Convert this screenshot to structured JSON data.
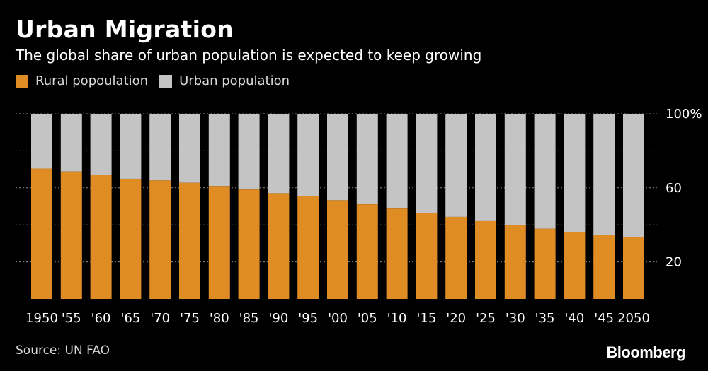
{
  "header": {
    "title": "Urban Migration",
    "subtitle": "The global share of urban population is expected to keep growing"
  },
  "footer": {
    "source": "Source: UN FAO",
    "brand": "Bloomberg"
  },
  "colors": {
    "rural": "#e08c24",
    "urban": "#c4c4c4",
    "grid": "#8a8a8a",
    "background": "#000000"
  },
  "chart_data": {
    "type": "bar",
    "stacked": true,
    "categories": [
      "1950",
      "'55",
      "'60",
      "'65",
      "'70",
      "'75",
      "'80",
      "'85",
      "'90",
      "'95",
      "'00",
      "'05",
      "'10",
      "'15",
      "'20",
      "'25",
      "'30",
      "'35",
      "'40",
      "'45",
      "2050"
    ],
    "series": [
      {
        "name": "Rural popoulation",
        "values": [
          70.4,
          68.8,
          66.9,
          64.9,
          64.0,
          62.7,
          61.0,
          59.1,
          57.1,
          55.4,
          53.3,
          51.1,
          48.8,
          46.3,
          44.3,
          42.0,
          39.9,
          37.9,
          36.2,
          34.7,
          33.2
        ]
      },
      {
        "name": "Urban population",
        "values": [
          29.6,
          31.2,
          33.1,
          35.1,
          36.0,
          37.3,
          39.0,
          40.9,
          42.9,
          44.6,
          46.7,
          48.9,
          51.2,
          53.7,
          55.7,
          58.0,
          60.1,
          62.1,
          63.8,
          65.3,
          66.8
        ]
      }
    ],
    "ylim": [
      0,
      100
    ],
    "yticks": [
      {
        "value": 20,
        "label": "20"
      },
      {
        "value": 60,
        "label": "60"
      },
      {
        "value": 100,
        "label": "100%"
      }
    ],
    "grid_values": [
      20,
      40,
      60,
      80,
      100
    ],
    "grid": true,
    "legend_position": "top-left"
  }
}
